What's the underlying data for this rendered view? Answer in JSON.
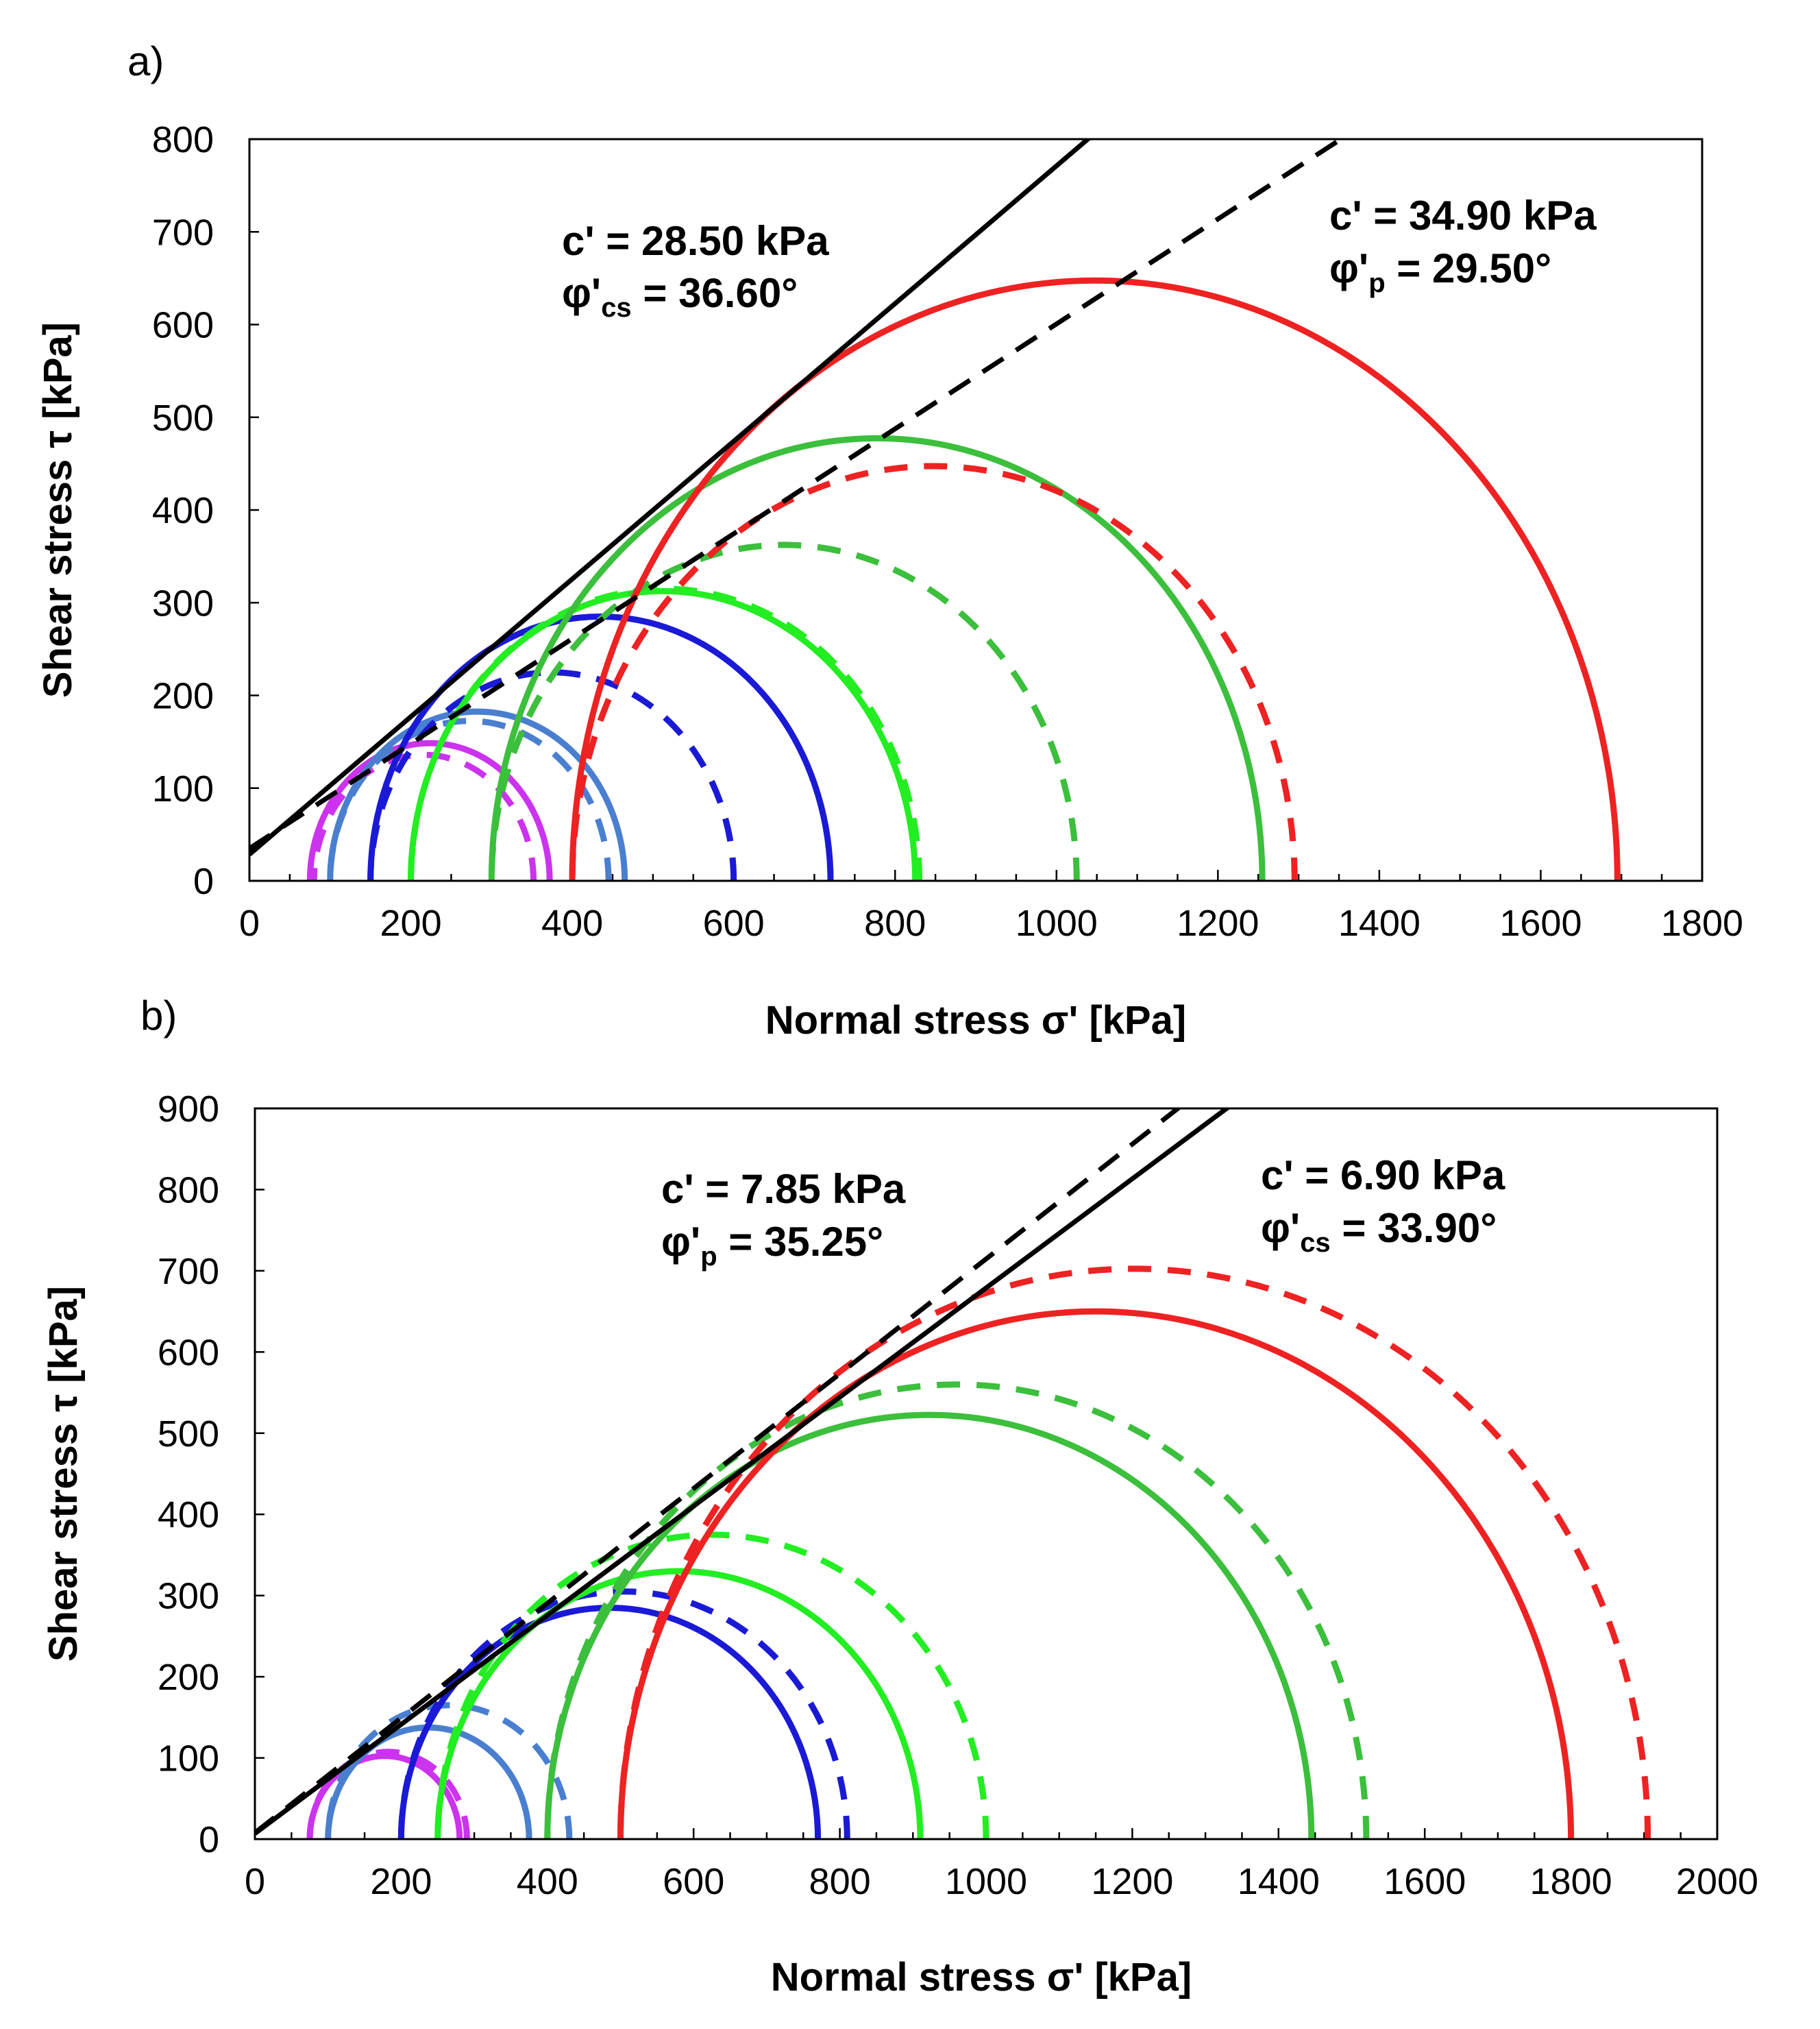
{
  "chart_data": [
    {
      "panel_label": "a)",
      "type": "line",
      "title": "",
      "xlabel": "Normal stress σ' [kPa]",
      "ylabel": "Shear stress τ [kPa]",
      "xlim": [
        0,
        1800
      ],
      "ylim": [
        0,
        800
      ],
      "x_ticks": [
        "0",
        "200",
        "400",
        "600",
        "800",
        "1000",
        "1200",
        "1400",
        "1600",
        "1800"
      ],
      "y_ticks": [
        "0",
        "100",
        "200",
        "300",
        "400",
        "500",
        "600",
        "700",
        "800"
      ],
      "envelopes": [
        {
          "name": "critical state envelope (solid)",
          "style": "solid",
          "color": "#000000",
          "c": 28.5,
          "phi_deg": 36.6,
          "label": {
            "line1": "c' = 28.50 kPa",
            "phi_prefix": "φ'",
            "phi_sub": "cs",
            "phi_value": " = 36.60°"
          }
        },
        {
          "name": "peak envelope (dashed)",
          "style": "dashed",
          "color": "#000000",
          "c": 34.9,
          "phi_deg": 29.5,
          "label": {
            "line1": "c' = 34.90 kPa",
            "phi_prefix": "φ'",
            "phi_sub": "p",
            "phi_value": " = 29.50°"
          }
        }
      ],
      "circles": [
        {
          "color": "#cc33ee",
          "style": "dashed",
          "sigma3": 80,
          "sigma1": 352
        },
        {
          "color": "#cc33ee",
          "style": "solid",
          "sigma3": 75,
          "sigma1": 372
        },
        {
          "color": "#4a7fd0",
          "style": "dashed",
          "sigma3": 100,
          "sigma1": 445
        },
        {
          "color": "#4a7fd0",
          "style": "solid",
          "sigma3": 100,
          "sigma1": 465
        },
        {
          "color": "#1a1ad6",
          "style": "dashed",
          "sigma3": 150,
          "sigma1": 600
        },
        {
          "color": "#1a1ad6",
          "style": "solid",
          "sigma3": 150,
          "sigma1": 720
        },
        {
          "color": "#22ee22",
          "style": "dashed",
          "sigma3": 200,
          "sigma1": 830
        },
        {
          "color": "#22ee22",
          "style": "solid",
          "sigma3": 200,
          "sigma1": 825
        },
        {
          "color": "#3cbf3c",
          "style": "dashed",
          "sigma3": 300,
          "sigma1": 1025
        },
        {
          "color": "#3cbf3c",
          "style": "solid",
          "sigma3": 300,
          "sigma1": 1255
        },
        {
          "color": "#ee2222",
          "style": "dashed",
          "sigma3": 400,
          "sigma1": 1295
        },
        {
          "color": "#ee2222",
          "style": "solid",
          "sigma3": 400,
          "sigma1": 1695
        }
      ]
    },
    {
      "panel_label": "b)",
      "type": "line",
      "title": "",
      "xlabel": "Normal stress σ' [kPa]",
      "ylabel": "Shear stress τ  [kPa]",
      "xlim": [
        0,
        2000
      ],
      "ylim": [
        0,
        900
      ],
      "x_ticks": [
        "0",
        "200",
        "400",
        "600",
        "800",
        "1000",
        "1200",
        "1400",
        "1600",
        "1800",
        "2000"
      ],
      "y_ticks": [
        "0",
        "100",
        "200",
        "300",
        "400",
        "500",
        "600",
        "700",
        "800",
        "900"
      ],
      "envelopes": [
        {
          "name": "peak envelope (dashed)",
          "style": "dashed",
          "color": "#000000",
          "c": 7.85,
          "phi_deg": 35.25,
          "label": {
            "line1": "c' = 7.85 kPa",
            "phi_prefix": "φ'",
            "phi_sub": "p",
            "phi_value": " = 35.25°"
          }
        },
        {
          "name": "critical state envelope (solid)",
          "style": "solid",
          "color": "#000000",
          "c": 6.9,
          "phi_deg": 33.9,
          "label": {
            "line1": "c' = 6.90 kPa",
            "phi_prefix": "φ'",
            "phi_sub": "cs",
            "phi_value": " = 33.90°"
          }
        }
      ],
      "circles": [
        {
          "color": "#cc33ee",
          "style": "dashed",
          "sigma3": 75,
          "sigma1": 290
        },
        {
          "color": "#cc33ee",
          "style": "solid",
          "sigma3": 75,
          "sigma1": 280
        },
        {
          "color": "#4a7fd0",
          "style": "dashed",
          "sigma3": 100,
          "sigma1": 430
        },
        {
          "color": "#4a7fd0",
          "style": "solid",
          "sigma3": 100,
          "sigma1": 375
        },
        {
          "color": "#1a1ad6",
          "style": "dashed",
          "sigma3": 200,
          "sigma1": 810
        },
        {
          "color": "#1a1ad6",
          "style": "solid",
          "sigma3": 200,
          "sigma1": 770
        },
        {
          "color": "#22ee22",
          "style": "dashed",
          "sigma3": 250,
          "sigma1": 1000
        },
        {
          "color": "#22ee22",
          "style": "solid",
          "sigma3": 250,
          "sigma1": 910
        },
        {
          "color": "#3cbf3c",
          "style": "dashed",
          "sigma3": 400,
          "sigma1": 1520
        },
        {
          "color": "#3cbf3c",
          "style": "solid",
          "sigma3": 400,
          "sigma1": 1445
        },
        {
          "color": "#ee2222",
          "style": "dashed",
          "sigma3": 500,
          "sigma1": 1905
        },
        {
          "color": "#ee2222",
          "style": "solid",
          "sigma3": 500,
          "sigma1": 1800
        }
      ]
    }
  ]
}
